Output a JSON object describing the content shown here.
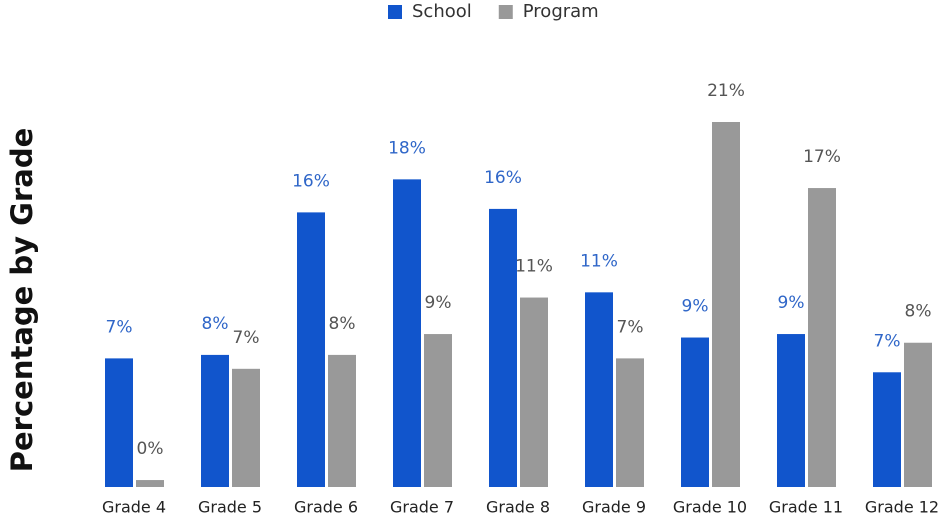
{
  "chart_data": {
    "type": "bar",
    "y_label": "Percentage by Grade",
    "categories": [
      "Grade 4",
      "Grade 5",
      "Grade 6",
      "Grade 7",
      "Grade 8",
      "Grade 9",
      "Grade 10",
      "Grade 11",
      "Grade 12"
    ],
    "series": [
      {
        "name": "School",
        "color": "#1155cc",
        "label_color": "#2f66c8",
        "values": [
          7.4,
          7.6,
          15.8,
          17.7,
          16.0,
          11.2,
          8.6,
          8.8,
          6.6
        ],
        "value_labels": [
          "7%",
          "8%",
          "16%",
          "18%",
          "16%",
          "11%",
          "9%",
          "9%",
          "7%"
        ]
      },
      {
        "name": "Program",
        "color": "#999999",
        "label_color": "#555555",
        "values": [
          0.4,
          6.8,
          7.6,
          8.8,
          10.9,
          7.4,
          21.0,
          17.2,
          8.3
        ],
        "value_labels": [
          "0%",
          "7%",
          "8%",
          "9%",
          "11%",
          "7%",
          "21%",
          "17%",
          "8%"
        ]
      }
    ],
    "ylim": [
      0,
      24
    ],
    "grid": false,
    "legend": "top"
  }
}
